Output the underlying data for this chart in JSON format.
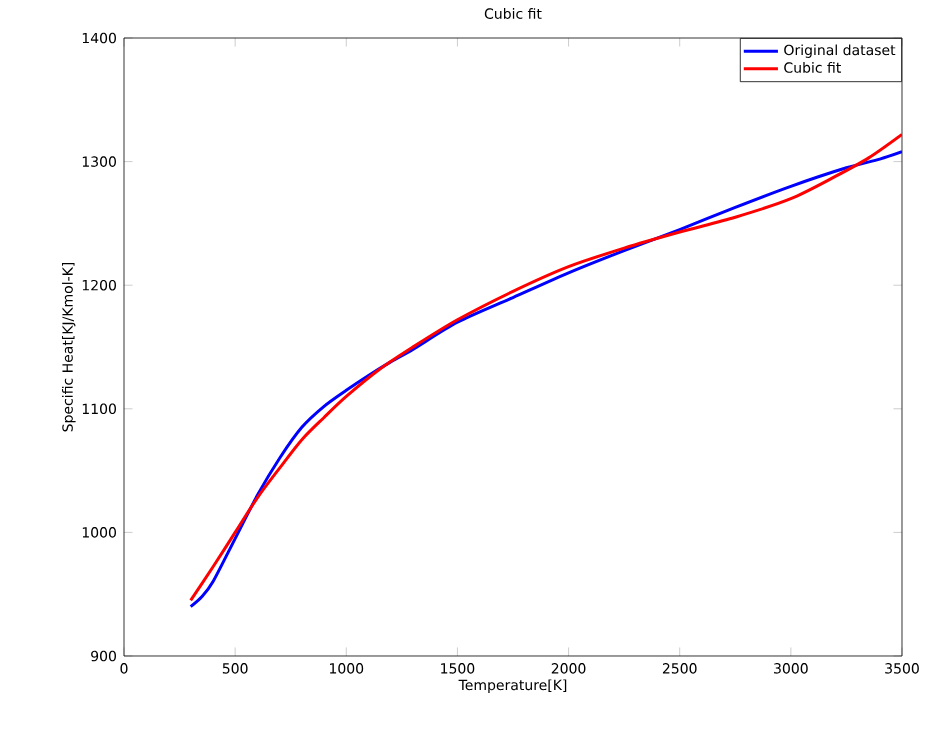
{
  "chart_data": {
    "type": "line",
    "title": "Cubic fit",
    "xlabel": "Temperature[K]",
    "ylabel": "Specific Heat[KJ/Kmol-K]",
    "xlim": [
      0,
      3500
    ],
    "xticks": [
      0,
      500,
      1000,
      1500,
      2000,
      2500,
      3000,
      3500
    ],
    "ylim": [
      900,
      1400
    ],
    "yticks": [
      900,
      1000,
      1100,
      1200,
      1300,
      1400
    ],
    "legend": "top right",
    "grid": false,
    "marker": "none",
    "line_style": "solid",
    "series": [
      {
        "name": "Original dataset",
        "color": "#0000ff",
        "x": [
          300,
          350,
          400,
          500,
          600,
          700,
          800,
          900,
          1000,
          1100,
          1200,
          1300,
          1500,
          1750,
          2000,
          2250,
          2500,
          2750,
          3000,
          3250,
          3400,
          3500
        ],
        "values": [
          940,
          948,
          960,
          995,
          1030,
          1060,
          1085,
          1102,
          1115,
          1127,
          1138,
          1148,
          1170,
          1190,
          1210,
          1228,
          1245,
          1263,
          1280,
          1295,
          1302,
          1308
        ]
      },
      {
        "name": "Cubic fit",
        "color": "#ff0000",
        "x": [
          300,
          400,
          500,
          600,
          700,
          800,
          900,
          1000,
          1150,
          1300,
          1500,
          1750,
          2000,
          2250,
          2500,
          2750,
          3000,
          3200,
          3350,
          3500
        ],
        "values": [
          945,
          972,
          1000,
          1028,
          1052,
          1075,
          1093,
          1110,
          1132,
          1150,
          1172,
          1195,
          1215,
          1230,
          1243,
          1255,
          1270,
          1288,
          1303,
          1322
        ]
      }
    ]
  }
}
